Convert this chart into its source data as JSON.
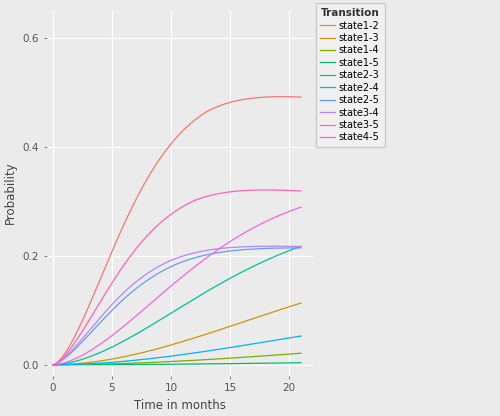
{
  "title": "",
  "xlabel": "Time in months",
  "ylabel": "Probability",
  "legend_title": "Transition",
  "xlim": [
    -0.5,
    22
  ],
  "ylim": [
    -0.02,
    0.65
  ],
  "xticks": [
    0,
    5,
    10,
    15,
    20
  ],
  "yticks": [
    0.0,
    0.2,
    0.4,
    0.6
  ],
  "plot_bg": "#EBEBEB",
  "fig_bg": "#EBEBEB",
  "grid_color": "#FFFFFF",
  "legend_bg": "#F0F0F0",
  "colors": {
    "state1-2": "#F8766D",
    "state1-3": "#CD9600",
    "state1-4": "#7CAE00",
    "state1-5": "#00BE67",
    "state2-3": "#00C19A",
    "state2-4": "#00B4EF",
    "state2-5": "#619CFF",
    "state3-4": "#B983FF",
    "state3-5": "#F564E3",
    "state4-5": "#FF64B0"
  },
  "legend_order": [
    "state1-2",
    "state1-3",
    "state1-4",
    "state1-5",
    "state2-3",
    "state2-4",
    "state2-5",
    "state3-4",
    "state3-5",
    "state4-5"
  ],
  "t_max": 21,
  "n_points": 500
}
